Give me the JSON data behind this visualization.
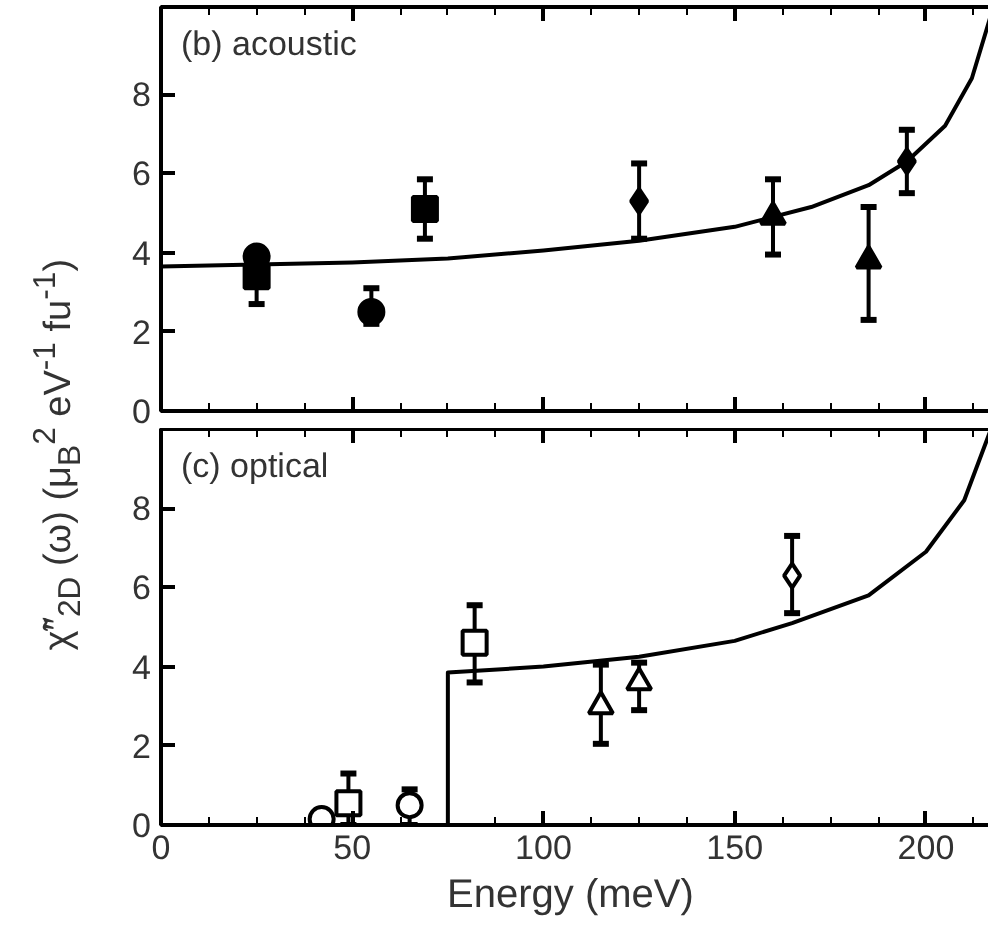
{
  "chart_data": [
    {
      "type": "scatter",
      "ylabel": "χ̃″$_{2D}$ (ω)  (μ$_{B}$$^{2}$ eV$^{-1}$ fu$^{-1}$)",
      "annotations": [
        "(b)  acoustic"
      ],
      "xlim": [
        0,
        217
      ],
      "xticks": [
        0,
        50,
        100,
        150,
        200
      ],
      "ylim": [
        0,
        10.2
      ],
      "yticks": [
        0,
        2,
        4,
        6,
        8
      ],
      "tick_labels": "y",
      "grid": false,
      "series": [
        {
          "type": "line",
          "color": "#000000",
          "marker": "none",
          "line_style": "solid",
          "x": [
            0,
            25,
            50,
            75,
            100,
            125,
            150,
            170,
            185,
            195,
            205,
            212,
            217
          ],
          "values": [
            3.65,
            3.7,
            3.75,
            3.85,
            4.05,
            4.3,
            4.65,
            5.15,
            5.7,
            6.3,
            7.2,
            8.4,
            10
          ]
        },
        {
          "color": "#000000",
          "marker": "circle",
          "x": [
            25,
            55
          ],
          "values": [
            3.9,
            2.5
          ],
          "errors": [
            null,
            [
              2.2,
              3.1
            ]
          ]
        },
        {
          "color": "#000000",
          "marker": "square",
          "x": [
            25,
            69
          ],
          "values": [
            3.4,
            5.1
          ],
          "errors": [
            [
              2.7,
              4.1
            ],
            [
              4.35,
              5.85
            ]
          ]
        },
        {
          "color": "#000000",
          "marker": "diamond",
          "x": [
            125,
            195
          ],
          "values": [
            5.3,
            6.3
          ],
          "errors": [
            [
              4.35,
              6.25
            ],
            [
              5.5,
              7.1
            ]
          ]
        },
        {
          "color": "#000000",
          "marker": "triangle",
          "x": [
            160,
            185
          ],
          "values": [
            4.9,
            3.8
          ],
          "errors": [
            [
              3.95,
              5.85
            ],
            [
              2.3,
              5.15
            ]
          ]
        }
      ]
    },
    {
      "type": "scatter",
      "xlabel": "Energy  (meV)",
      "annotations": [
        "(c)  optical"
      ],
      "xlim": [
        0,
        217
      ],
      "xticks": [
        0,
        50,
        100,
        150,
        200
      ],
      "ylim": [
        0,
        10
      ],
      "yticks": [
        0,
        2,
        4,
        6,
        8
      ],
      "grid": false,
      "series": [
        {
          "type": "line",
          "color": "#000000",
          "marker": "none",
          "line_style": "solid",
          "x": [
            0,
            75,
            75,
            100,
            125,
            150,
            165,
            185,
            200,
            210,
            217
          ],
          "values": [
            0,
            0,
            3.85,
            4.0,
            4.25,
            4.65,
            5.1,
            5.8,
            6.9,
            8.2,
            10
          ]
        },
        {
          "color": "#000000",
          "marker": "circle",
          "x": [
            42,
            65
          ],
          "values": [
            0.15,
            0.5
          ],
          "errors": [
            null,
            [
              0,
              0.9
            ]
          ]
        },
        {
          "color": "#000000",
          "marker": "square",
          "x": [
            49,
            82
          ],
          "values": [
            0.55,
            4.6
          ],
          "errors": [
            [
              0,
              1.3
            ],
            [
              3.6,
              5.55
            ]
          ]
        },
        {
          "color": "#000000",
          "marker": "triangle",
          "x": [
            115,
            125
          ],
          "values": [
            3.0,
            3.6
          ],
          "errors": [
            [
              2.05,
              4.05
            ],
            [
              2.9,
              4.1
            ]
          ]
        },
        {
          "color": "#000000",
          "marker": "diamond",
          "x": [
            165
          ],
          "values": [
            6.3
          ],
          "errors": [
            [
              5.35,
              7.3
            ]
          ]
        }
      ]
    }
  ]
}
